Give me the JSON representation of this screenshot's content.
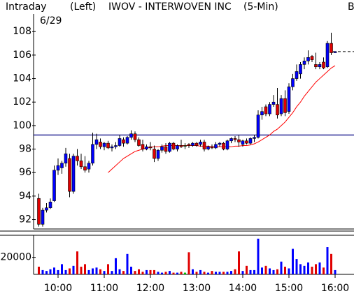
{
  "chart_data": {
    "type": "candlestick",
    "mode": "Intraday",
    "axis_side": "(Left)",
    "title": "IWOV - INTERWOVEN INC",
    "interval": "(5-Min)",
    "corner_text": "B",
    "date": "6/29",
    "categories": [
      null,
      null,
      null,
      null,
      null,
      "10:00",
      null,
      null,
      null,
      null,
      null,
      null,
      null,
      null,
      null,
      null,
      null,
      "11:00",
      null,
      null,
      null,
      null,
      null,
      null,
      null,
      null,
      null,
      null,
      null,
      "12:00",
      null,
      null,
      null,
      null,
      null,
      null,
      null,
      null,
      null,
      null,
      null,
      "13:00",
      null,
      null,
      null,
      null,
      null,
      null,
      null,
      null,
      null,
      null,
      null,
      "14:00",
      null,
      null,
      null,
      null,
      null,
      null,
      null,
      null,
      null,
      null,
      null,
      "15:00",
      null,
      null,
      null,
      null,
      null,
      null,
      null,
      null,
      null,
      null,
      null,
      "16:00"
    ],
    "open": [
      93.8,
      91.6,
      92.8,
      93.0,
      93.6,
      96.2,
      96.4,
      96.8,
      97.2,
      94.4,
      97.4,
      97.0,
      96.5,
      96.3,
      96.8,
      98.4,
      98.6,
      98.2,
      98.5,
      98.1,
      98.2,
      98.3,
      98.8,
      98.5,
      99.0,
      99.3,
      98.8,
      98.4,
      98.0,
      98.2,
      98.0,
      97.2,
      97.9,
      98.2,
      97.8,
      98.5,
      98.0,
      98.3,
      98.3,
      98.4,
      98.3,
      98.5,
      98.4,
      98.6,
      98.0,
      98.2,
      98.1,
      98.4,
      98.5,
      98.0,
      98.7,
      98.9,
      98.8,
      98.4,
      98.7,
      98.5,
      98.9,
      99.0,
      100.9,
      101.6,
      101.0,
      101.8,
      101.8,
      101.0,
      102.3,
      101.2,
      103.3,
      104.0,
      104.4,
      105.2,
      105.5,
      105.9,
      105.2,
      105.0,
      105.4,
      105.0,
      107.0,
      106.2
    ],
    "high": [
      94.2,
      93.0,
      93.4,
      93.8,
      96.6,
      97.2,
      97.0,
      98.1,
      97.6,
      97.6,
      98.0,
      97.6,
      97.4,
      97.0,
      99.4,
      99.3,
      98.9,
      98.6,
      98.7,
      98.4,
      98.6,
      99.2,
      99.0,
      99.1,
      99.6,
      99.5,
      99.0,
      98.8,
      98.4,
      98.6,
      98.3,
      98.0,
      98.4,
      98.5,
      98.6,
      98.6,
      98.4,
      98.8,
      98.5,
      98.5,
      98.6,
      98.6,
      98.8,
      98.8,
      98.3,
      98.4,
      98.6,
      98.6,
      98.6,
      98.8,
      99.0,
      99.1,
      99.2,
      98.8,
      98.9,
      99.0,
      99.2,
      101.3,
      101.6,
      101.8,
      102.0,
      102.6,
      103.2,
      102.6,
      103.0,
      103.6,
      104.4,
      105.2,
      105.4,
      105.8,
      106.4,
      106.0,
      106.2,
      105.4,
      105.8,
      107.2,
      107.9,
      106.3
    ],
    "low": [
      91.4,
      91.4,
      92.6,
      92.9,
      93.5,
      95.8,
      95.9,
      96.5,
      93.9,
      94.2,
      96.6,
      96.3,
      96.0,
      96.0,
      96.6,
      98.0,
      98.0,
      97.9,
      98.0,
      97.8,
      98.0,
      98.2,
      98.2,
      98.4,
      98.8,
      98.6,
      98.2,
      97.8,
      97.9,
      97.9,
      96.9,
      97.0,
      97.7,
      97.6,
      97.7,
      97.9,
      97.8,
      98.1,
      98.0,
      98.1,
      98.2,
      98.2,
      98.2,
      97.8,
      97.9,
      98.0,
      98.0,
      98.2,
      97.9,
      97.9,
      98.5,
      98.6,
      98.2,
      98.2,
      98.4,
      98.4,
      98.6,
      98.9,
      100.5,
      100.8,
      100.8,
      101.6,
      100.6,
      100.8,
      100.8,
      101.0,
      103.0,
      103.8,
      104.0,
      104.8,
      105.2,
      105.4,
      104.8,
      104.8,
      104.8,
      104.9,
      106.0,
      106.2
    ],
    "close": [
      91.6,
      92.8,
      93.0,
      93.5,
      96.2,
      96.6,
      96.8,
      97.6,
      94.4,
      97.4,
      97.0,
      96.5,
      96.2,
      96.8,
      98.4,
      98.8,
      98.2,
      98.5,
      98.1,
      98.2,
      98.3,
      98.9,
      98.5,
      99.0,
      99.3,
      98.8,
      98.3,
      98.0,
      98.2,
      98.1,
      97.2,
      97.9,
      98.2,
      97.8,
      98.5,
      98.0,
      98.3,
      98.2,
      98.3,
      98.3,
      98.5,
      98.3,
      98.6,
      98.0,
      98.2,
      98.1,
      98.4,
      98.5,
      98.0,
      98.7,
      98.9,
      98.8,
      98.6,
      98.7,
      98.5,
      98.9,
      99.0,
      100.9,
      101.2,
      101.0,
      101.8,
      102.0,
      100.9,
      102.3,
      101.1,
      103.3,
      104.0,
      104.6,
      105.2,
      105.5,
      105.8,
      105.6,
      105.0,
      105.2,
      104.9,
      107.0,
      106.2,
      106.3
    ],
    "ma": [
      null,
      null,
      null,
      null,
      null,
      null,
      null,
      null,
      null,
      null,
      null,
      null,
      null,
      null,
      null,
      null,
      null,
      null,
      96.0,
      96.3,
      96.6,
      96.9,
      97.2,
      97.4,
      97.6,
      97.8,
      97.9,
      98.0,
      98.1,
      98.15,
      98.2,
      98.2,
      98.25,
      98.3,
      98.3,
      98.3,
      98.3,
      98.3,
      98.3,
      98.3,
      98.3,
      98.3,
      98.25,
      98.25,
      98.25,
      98.2,
      98.2,
      98.2,
      98.2,
      98.2,
      98.2,
      98.25,
      98.25,
      98.3,
      98.3,
      98.35,
      98.45,
      98.6,
      98.8,
      99.0,
      99.2,
      99.5,
      99.7,
      100.0,
      100.3,
      100.7,
      101.1,
      101.6,
      102.0,
      102.5,
      102.9,
      103.3,
      103.7,
      104.0,
      104.3,
      104.6,
      104.9,
      105.1
    ],
    "up_color": "#0000ff",
    "down_color": "#e00000",
    "flat_color": "#00c000",
    "ma_color": "#ff0000",
    "ref_line": 99.2,
    "ref_color": "#000080",
    "last_line": 106.3,
    "ylim": [
      91.2,
      109.5
    ],
    "yticks": [
      92,
      94,
      96,
      98,
      100,
      102,
      104,
      106,
      108
    ],
    "volume": {
      "values": [
        9000,
        5000,
        4000,
        6000,
        8000,
        5000,
        12000,
        5000,
        7000,
        10000,
        27000,
        9000,
        12000,
        5000,
        7000,
        8000,
        6000,
        4000,
        12000,
        4000,
        19000,
        6000,
        4000,
        24000,
        9000,
        4000,
        6000,
        3000,
        5000,
        5000,
        5000,
        3000,
        2000,
        3000,
        4000,
        2000,
        2000,
        3000,
        2000,
        26000,
        6000,
        3000,
        5000,
        3000,
        2000,
        4000,
        3000,
        3000,
        3000,
        3000,
        4000,
        6000,
        27000,
        4000,
        10000,
        5000,
        5000,
        42000,
        8000,
        10000,
        7000,
        5000,
        6000,
        15000,
        9000,
        7000,
        30000,
        18000,
        12000,
        10000,
        14000,
        9000,
        12000,
        14000,
        8000,
        32000,
        24000,
        5000
      ],
      "ylim": [
        0,
        46000
      ],
      "yticks": [
        20000
      ]
    }
  }
}
